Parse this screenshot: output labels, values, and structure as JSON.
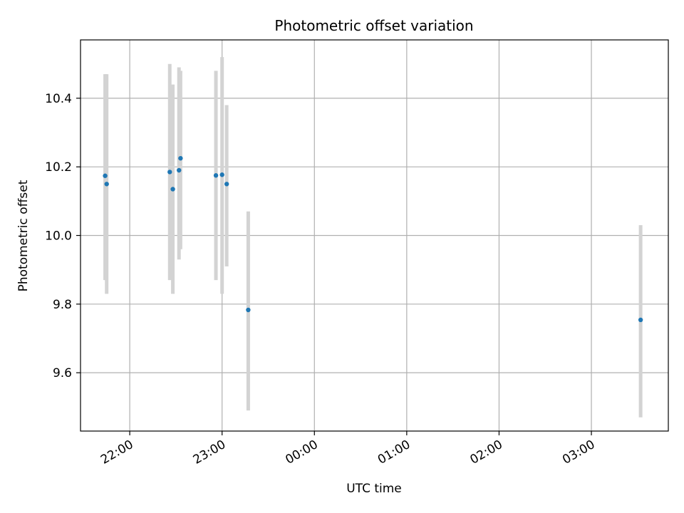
{
  "chart_data": {
    "type": "scatter",
    "title": "Photometric offset variation",
    "xlabel": "UTC time",
    "ylabel": "Photometric offset",
    "x_axis": {
      "kind": "time",
      "range": [
        "21:28",
        "03:50"
      ],
      "tick_values": [
        "22:00",
        "23:00",
        "00:00",
        "01:00",
        "02:00",
        "03:00"
      ],
      "tick_labels": [
        "22:00",
        "23:00",
        "00:00",
        "01:00",
        "02:00",
        "03:00"
      ]
    },
    "y_axis": {
      "range": [
        9.43,
        10.57
      ],
      "ticks": [
        9.6,
        9.8,
        10.0,
        10.2,
        10.4
      ],
      "tick_labels": [
        "9.6",
        "9.8",
        "10.0",
        "10.2",
        "10.4"
      ]
    },
    "grid": true,
    "colors": {
      "points": "#1f77b4",
      "errorbars": "#d3d3d3",
      "grid": "#b0b0b0"
    },
    "points": [
      {
        "x": "21:44",
        "y": 10.174,
        "ylow": 9.87,
        "yhigh": 10.47
      },
      {
        "x": "21:45",
        "y": 10.15,
        "ylow": 9.83,
        "yhigh": 10.47
      },
      {
        "x": "22:26",
        "y": 10.185,
        "ylow": 9.87,
        "yhigh": 10.5
      },
      {
        "x": "22:28",
        "y": 10.135,
        "ylow": 9.83,
        "yhigh": 10.44
      },
      {
        "x": "22:32",
        "y": 10.19,
        "ylow": 9.93,
        "yhigh": 10.49
      },
      {
        "x": "22:33",
        "y": 10.225,
        "ylow": 9.96,
        "yhigh": 10.48
      },
      {
        "x": "22:56",
        "y": 10.175,
        "ylow": 9.87,
        "yhigh": 10.48
      },
      {
        "x": "23:00",
        "y": 10.177,
        "ylow": 9.83,
        "yhigh": 10.52
      },
      {
        "x": "23:03",
        "y": 10.15,
        "ylow": 9.91,
        "yhigh": 10.38
      },
      {
        "x": "23:17",
        "y": 9.783,
        "ylow": 9.49,
        "yhigh": 10.07
      },
      {
        "x": "03:32",
        "y": 9.754,
        "ylow": 9.47,
        "yhigh": 10.03
      }
    ]
  }
}
